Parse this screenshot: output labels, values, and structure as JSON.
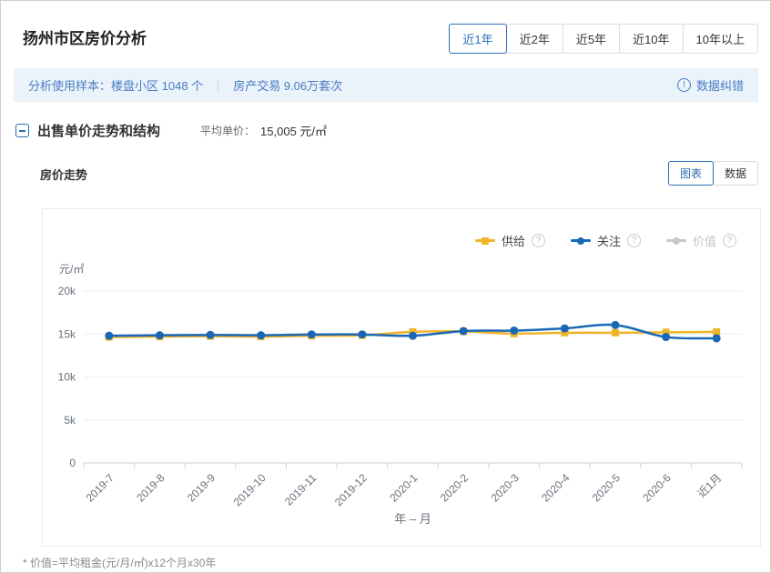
{
  "page": {
    "title": "扬州市区房价分析",
    "footnote": "* 价值=平均租金(元/月/㎡)x12个月x30年"
  },
  "period_tabs": [
    {
      "label": "近1年",
      "active": true
    },
    {
      "label": "近2年",
      "active": false
    },
    {
      "label": "近5年",
      "active": false
    },
    {
      "label": "近10年",
      "active": false
    },
    {
      "label": "10年以上",
      "active": false
    }
  ],
  "sample_bar": {
    "prefix": "分析使用样本：",
    "sample1": "楼盘小区 1048 个",
    "divider": "｜",
    "sample2": "房产交易 9.06万套次",
    "correction_label": "数据纠错",
    "info_glyph": "!"
  },
  "section": {
    "title": "出售单价走势和结构",
    "avg_label": "平均单价：",
    "avg_value": "15,005 元/㎡"
  },
  "trend": {
    "title": "房价走势",
    "view_tabs": [
      {
        "label": "图表",
        "active": true
      },
      {
        "label": "数据",
        "active": false
      }
    ]
  },
  "colors": {
    "accent_blue": "#2b6cb5",
    "supply_yellow": "#f0b428",
    "follow_blue": "#1a68b5",
    "disabled_gray": "#c5c8ce",
    "bar_bg": "#eaf2fa"
  },
  "chart_data": {
    "type": "line",
    "title": "房价走势",
    "y_unit": "元/㎡",
    "xlabel": "年 – 月",
    "ylim": [
      0,
      20000
    ],
    "yticks": [
      0,
      5000,
      10000,
      15000,
      20000
    ],
    "ytick_labels": [
      "0",
      "5k",
      "10k",
      "15k",
      "20k"
    ],
    "grid": true,
    "legend_position": "top-right",
    "categories": [
      "2019-7",
      "2019-8",
      "2019-9",
      "2019-10",
      "2019-11",
      "2019-12",
      "2020-1",
      "2020-2",
      "2020-3",
      "2020-4",
      "2020-5",
      "2020-6",
      "近1月"
    ],
    "series": [
      {
        "name": "供给",
        "color": "#f0b428",
        "marker": "square",
        "disabled": false,
        "values": [
          14650,
          14700,
          14750,
          14700,
          14800,
          14850,
          15250,
          15300,
          15050,
          15150,
          15150,
          15200,
          15250
        ]
      },
      {
        "name": "关注",
        "color": "#1a68b5",
        "marker": "circle",
        "disabled": false,
        "values": [
          14800,
          14850,
          14900,
          14850,
          14950,
          14950,
          14800,
          15350,
          15400,
          15650,
          16050,
          14650,
          14500
        ]
      },
      {
        "name": "价值",
        "color": "#c5c8ce",
        "marker": "circle",
        "disabled": true,
        "values": []
      }
    ],
    "help_glyph": "?"
  }
}
